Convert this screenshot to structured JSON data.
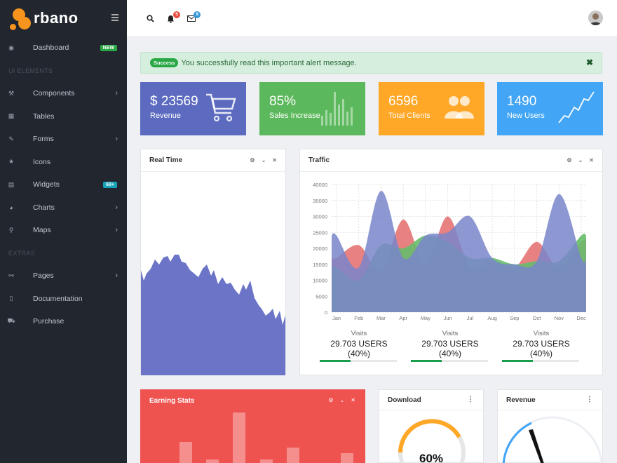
{
  "brand": {
    "name": "rbano",
    "accent": "#f7941d"
  },
  "sidebar": {
    "items": [
      {
        "label": "Dashboard",
        "icon": "dashboard-icon",
        "badge": "NEW",
        "badge_color": "#28a745"
      },
      {
        "section": "UI ELEMENTS"
      },
      {
        "label": "Components",
        "icon": "components-icon",
        "chevron": "›"
      },
      {
        "label": "Tables",
        "icon": "table-icon"
      },
      {
        "label": "Forms",
        "icon": "edit-icon",
        "chevron": "›"
      },
      {
        "label": "Icons",
        "icon": "star-icon"
      },
      {
        "label": "Widgets",
        "icon": "calculator-icon",
        "badge": "60+",
        "badge_color": "#17a2b8"
      },
      {
        "label": "Charts",
        "icon": "pie-chart-icon",
        "chevron": "›"
      },
      {
        "label": "Maps",
        "icon": "map-marker-icon",
        "chevron": "›"
      },
      {
        "section": "EXTRAS"
      },
      {
        "label": "Pages",
        "icon": "paperclip-icon",
        "chevron": "›"
      },
      {
        "label": "Documentation",
        "icon": "file-icon"
      },
      {
        "label": "Purchase",
        "icon": "cart-icon"
      }
    ]
  },
  "topbar": {
    "notifications_count": "5",
    "notifications_color": "#e74c3c",
    "messages_count": "9",
    "messages_color": "#3498db"
  },
  "alert": {
    "badge": "Success",
    "message": "You successfully read this important alert message.",
    "close": "✖"
  },
  "stats": [
    {
      "value": "$ 23569",
      "label": "Revenue",
      "color": "#5c6bc0",
      "icon": "cart-icon"
    },
    {
      "value": "85%",
      "label": "Sales Increase",
      "color": "#5cb85c",
      "icon": "bar-chart-icon"
    },
    {
      "value": "6596",
      "label": "Total Clients",
      "color": "#ffa726",
      "icon": "users-icon"
    },
    {
      "value": "1490",
      "label": "New Users",
      "color": "#42a5f5",
      "icon": "line-chart-icon"
    }
  ],
  "realtime": {
    "title": "Real Time"
  },
  "traffic": {
    "title": "Traffic",
    "visits": [
      {
        "label": "Visits",
        "value": "29.703 USERS (40%)"
      },
      {
        "label": "Visits",
        "value": "29.703 USERS (40%)"
      },
      {
        "label": "Visits",
        "value": "29.703 USERS (40%)"
      }
    ]
  },
  "earning": {
    "title": "Earning Stats",
    "color": "#ef5350"
  },
  "download": {
    "title": "Download",
    "value": "60%"
  },
  "revenue": {
    "title": "Revenue"
  },
  "chart_data": {
    "type": "area",
    "categories": [
      "Jan",
      "Feb",
      "Mar",
      "Apr",
      "May",
      "Jun",
      "Jul",
      "Aug",
      "Sep",
      "Oct",
      "Nov",
      "Dec"
    ],
    "ylim": [
      0,
      40000
    ],
    "yticks": [
      0,
      5000,
      10000,
      15000,
      20000,
      25000,
      30000,
      35000,
      40000
    ],
    "series": [
      {
        "color": "#e57373",
        "values": [
          17000,
          21000,
          13000,
          29000,
          15000,
          30000,
          14000,
          16000,
          14000,
          22000,
          14000,
          22000
        ]
      },
      {
        "color": "#66bb6a",
        "values": [
          14000,
          10000,
          21000,
          20000,
          24000,
          22000,
          17000,
          17000,
          15000,
          16000,
          16000,
          24000
        ]
      },
      {
        "color": "#7986cb",
        "values": [
          24000,
          14000,
          38000,
          17000,
          24000,
          25000,
          30000,
          17000,
          15000,
          16000,
          37000,
          17000
        ]
      }
    ]
  }
}
